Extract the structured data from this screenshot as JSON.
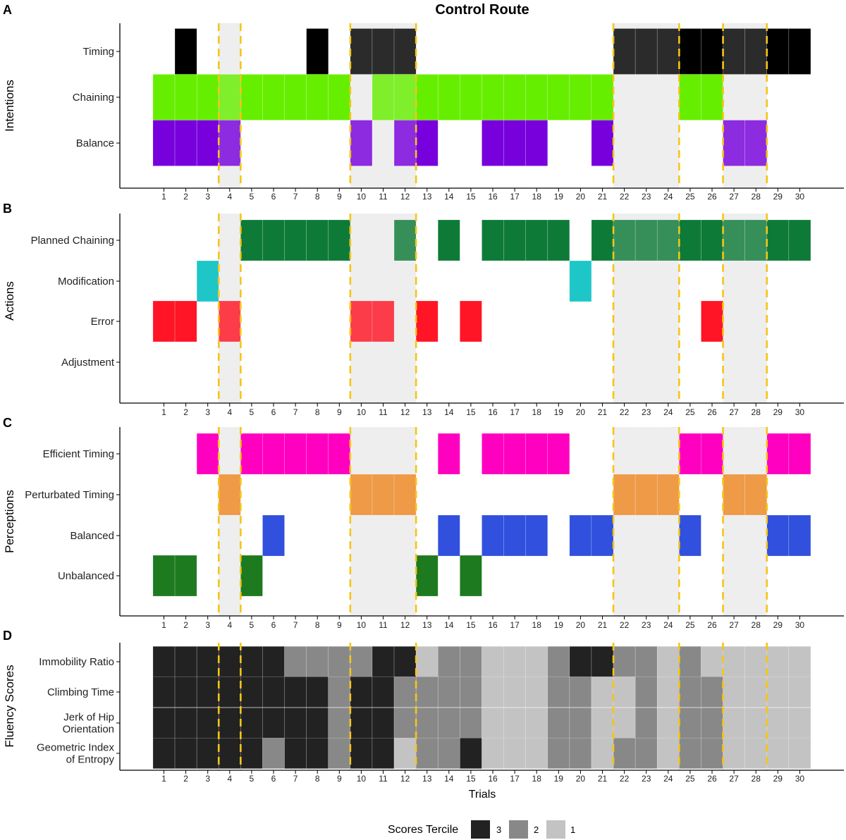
{
  "chart_data": {
    "type": "heatmap",
    "title": "Control Route",
    "xlabel": "Trials",
    "x": [
      1,
      2,
      3,
      4,
      5,
      6,
      7,
      8,
      9,
      10,
      11,
      12,
      13,
      14,
      15,
      16,
      17,
      18,
      19,
      20,
      21,
      22,
      23,
      24,
      25,
      26,
      27,
      28,
      29,
      30
    ],
    "x_tick_labels": [
      "1",
      "2",
      "3",
      "4",
      "5",
      "6",
      "7",
      "8",
      "9",
      "10",
      "11",
      "12",
      "13",
      "14",
      "15",
      "16",
      "17",
      "18",
      "19",
      "20",
      "21",
      "22",
      "23",
      "24",
      "25",
      "26",
      "27",
      "28",
      "29",
      "30"
    ],
    "shaded_trials": [
      4,
      10,
      11,
      12,
      22,
      23,
      24,
      27,
      28
    ],
    "dashed_line_positions": [
      3.5,
      4.5,
      9.5,
      12.5,
      21.5,
      24.5,
      26.5,
      28.5
    ],
    "colors": {
      "shade": "#eeeeee",
      "dashed_line": "#f5c518",
      "axis": "#000000",
      "timing": "#000000",
      "chaining": "#66ee00",
      "balance": "#7700dd",
      "planned_chaining": "#0e7a38",
      "modification": "#1ec6c8",
      "error": "#ff1525",
      "adjustment": "#999999",
      "efficient_timing": "#ff00c0",
      "perturbated_timing": "#ee8822",
      "balanced": "#3050dd",
      "unbalanced": "#1e7a1e",
      "tercile_3": "#222222",
      "tercile_2": "#888888",
      "tercile_1": "#c3c3c3"
    },
    "panels": [
      {
        "letter": "A",
        "ylabel": "Intentions",
        "rows": [
          {
            "label": "Timing",
            "color_key": "timing",
            "trials": [
              2,
              8,
              10,
              11,
              12,
              22,
              23,
              24,
              25,
              26,
              27,
              28,
              29,
              30
            ]
          },
          {
            "label": "Chaining",
            "color_key": "chaining",
            "trials": [
              1,
              2,
              3,
              4,
              5,
              6,
              7,
              8,
              9,
              11,
              12,
              13,
              14,
              15,
              16,
              17,
              18,
              19,
              20,
              21,
              25,
              26
            ]
          },
          {
            "label": "Balance",
            "color_key": "balance",
            "trials": [
              1,
              2,
              3,
              4,
              10,
              12,
              13,
              16,
              17,
              18,
              21,
              27,
              28
            ]
          }
        ]
      },
      {
        "letter": "B",
        "ylabel": "Actions",
        "rows": [
          {
            "label": "Planned Chaining",
            "color_key": "planned_chaining",
            "trials": [
              5,
              6,
              7,
              8,
              9,
              12,
              14,
              16,
              17,
              18,
              19,
              21,
              22,
              23,
              24,
              25,
              26,
              27,
              28,
              29,
              30
            ]
          },
          {
            "label": "Modification",
            "color_key": "modification",
            "trials": [
              3,
              20
            ]
          },
          {
            "label": "Error",
            "color_key": "error",
            "trials": [
              1,
              2,
              4,
              10,
              11,
              13,
              15,
              26
            ]
          },
          {
            "label": "Adjustment",
            "color_key": "adjustment",
            "trials": []
          }
        ]
      },
      {
        "letter": "C",
        "ylabel": "Perceptions",
        "rows": [
          {
            "label": "Efficient Timing",
            "color_key": "efficient_timing",
            "trials": [
              3,
              5,
              6,
              7,
              8,
              9,
              14,
              16,
              17,
              18,
              19,
              25,
              26,
              29,
              30
            ]
          },
          {
            "label": "Perturbated Timing",
            "color_key": "perturbated_timing",
            "trials": [
              4,
              10,
              11,
              12,
              22,
              23,
              24,
              27,
              28
            ]
          },
          {
            "label": "Balanced",
            "color_key": "balanced",
            "trials": [
              6,
              14,
              16,
              17,
              18,
              20,
              21,
              25,
              29,
              30
            ]
          },
          {
            "label": "Unbalanced",
            "color_key": "unbalanced",
            "trials": [
              1,
              2,
              5,
              13,
              15
            ]
          }
        ]
      },
      {
        "letter": "D",
        "ylabel": "Fluency Scores",
        "rows": [
          {
            "label": "Immobility Ratio",
            "terciles": [
              3,
              3,
              3,
              3,
              3,
              3,
              2,
              2,
              2,
              2,
              3,
              3,
              1,
              2,
              2,
              1,
              1,
              1,
              2,
              3,
              3,
              2,
              2,
              1,
              2,
              1,
              1,
              1,
              1,
              1
            ]
          },
          {
            "label": "Climbing Time",
            "terciles": [
              3,
              3,
              3,
              3,
              3,
              3,
              3,
              3,
              2,
              3,
              3,
              2,
              2,
              2,
              2,
              1,
              1,
              1,
              2,
              2,
              1,
              1,
              2,
              1,
              2,
              2,
              1,
              1,
              1,
              1
            ]
          },
          {
            "label": "Jerk of Hip\nOrientation",
            "terciles": [
              3,
              3,
              3,
              3,
              3,
              3,
              3,
              3,
              2,
              3,
              3,
              2,
              2,
              2,
              2,
              1,
              1,
              1,
              2,
              2,
              1,
              1,
              2,
              1,
              2,
              2,
              1,
              1,
              1,
              1
            ]
          },
          {
            "label": "Geometric Index\nof Entropy",
            "terciles": [
              3,
              3,
              3,
              3,
              3,
              2,
              3,
              3,
              2,
              3,
              3,
              1,
              2,
              2,
              3,
              1,
              1,
              1,
              2,
              2,
              1,
              2,
              2,
              1,
              2,
              2,
              1,
              1,
              1,
              1
            ]
          }
        ]
      }
    ],
    "legend": {
      "title": "Scores Tercile",
      "entries": [
        {
          "label": "3",
          "color_key": "tercile_3"
        },
        {
          "label": "2",
          "color_key": "tercile_2"
        },
        {
          "label": "1",
          "color_key": "tercile_1"
        }
      ]
    }
  }
}
